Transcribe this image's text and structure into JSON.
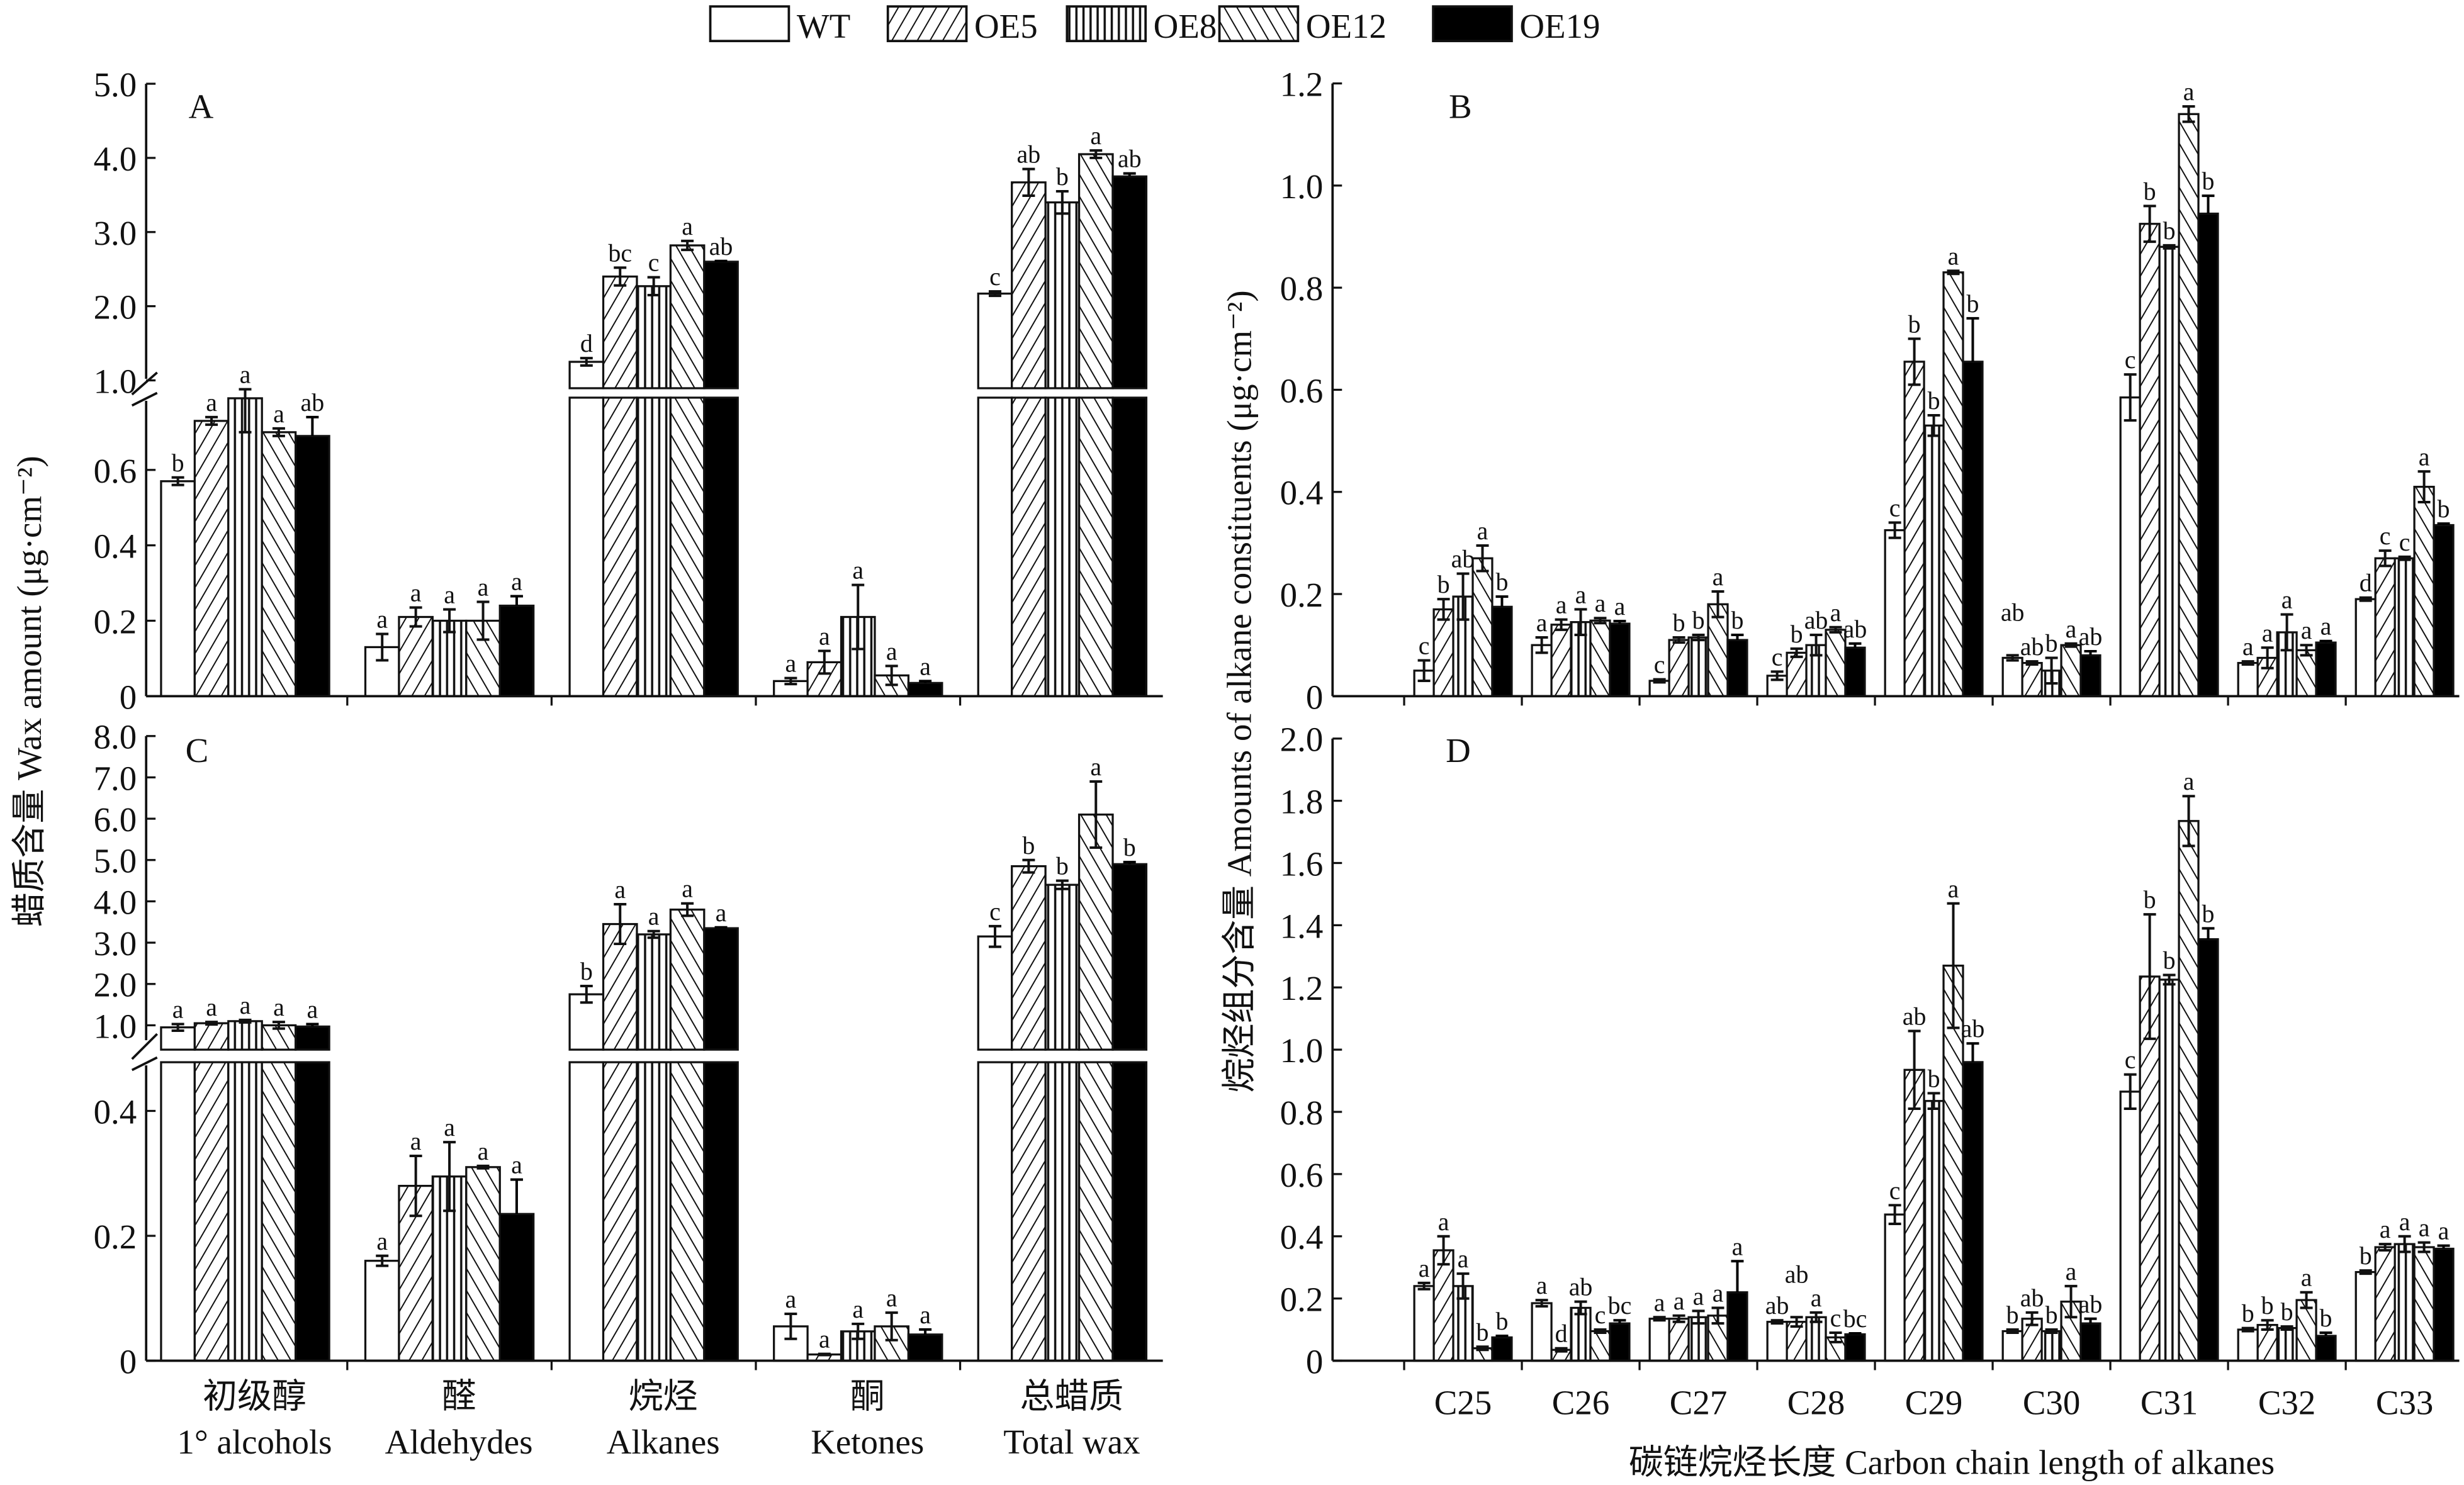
{
  "legend": [
    {
      "name": "WT",
      "pattern": "white"
    },
    {
      "name": "OE5",
      "pattern": "forward-diagonal"
    },
    {
      "name": "OE8",
      "pattern": "vertical"
    },
    {
      "name": "OE12",
      "pattern": "back-diagonal"
    },
    {
      "name": "OE19",
      "pattern": "black"
    }
  ],
  "colors": {
    "ink": "#111111",
    "background": "#ffffff",
    "solid": "#000000"
  },
  "ylabel_left": "蜡质含量 Wax amount (μg·cm⁻²)",
  "ylabel_right": "烷烃组分含量 Amounts of alkane constituents (μg·cm⁻²)",
  "chart_data": [
    {
      "panel": "A",
      "type": "bar",
      "broken_axis": true,
      "categories": [
        "1° alcohols",
        "Aldehydes",
        "Alkanes",
        "Ketones",
        "Total wax"
      ],
      "yticks": [
        "0",
        "0.2",
        "0.4",
        "0.6",
        "1.0",
        "2.0",
        "3.0",
        "4.0",
        "5.0"
      ],
      "ytick_values": [
        0,
        0.2,
        0.4,
        0.6,
        1,
        2,
        3,
        4,
        5
      ],
      "series": [
        {
          "name": "WT",
          "values": [
            0.57,
            0.13,
            1.25,
            0.04,
            2.17
          ],
          "errors": [
            0.01,
            0.035,
            0.05,
            0.008,
            0.03
          ]
        },
        {
          "name": "OE5",
          "values": [
            0.73,
            0.21,
            2.4,
            0.09,
            3.67
          ],
          "errors": [
            0.01,
            0.025,
            0.12,
            0.03,
            0.18
          ]
        },
        {
          "name": "OE8",
          "values": [
            0.79,
            0.2,
            2.27,
            0.21,
            3.4
          ],
          "errors": [
            0.09,
            0.03,
            0.12,
            0.085,
            0.15
          ]
        },
        {
          "name": "OE12",
          "values": [
            0.7,
            0.2,
            2.82,
            0.055,
            4.05
          ],
          "errors": [
            0.01,
            0.05,
            0.06,
            0.025,
            0.05
          ]
        },
        {
          "name": "OE19",
          "values": [
            0.69,
            0.24,
            2.6,
            0.035,
            3.75
          ],
          "errors": [
            0.05,
            0.025,
            0.01,
            0.005,
            0.04
          ]
        }
      ],
      "letters": [
        [
          "b",
          "a",
          "d",
          "a",
          "c"
        ],
        [
          "a",
          "a",
          "bc",
          "a",
          "ab"
        ],
        [
          "a",
          "a",
          "c",
          "a",
          "b"
        ],
        [
          "a",
          "a",
          "a",
          "a",
          "a"
        ],
        [
          "ab",
          "a",
          "ab",
          "a",
          "ab"
        ]
      ]
    },
    {
      "panel": "B",
      "type": "bar",
      "broken_axis": false,
      "categories": [
        "C25",
        "C26",
        "C27",
        "C28",
        "C29",
        "C30",
        "C31",
        "C32",
        "C33"
      ],
      "yticks": [
        "0",
        "0.2",
        "0.4",
        "0.6",
        "0.8",
        "1.0",
        "1.2"
      ],
      "ytick_values": [
        0,
        0.2,
        0.4,
        0.6,
        0.8,
        1.0,
        1.2
      ],
      "series": [
        {
          "name": "WT",
          "values": [
            0.05,
            0.1,
            0.03,
            0.04,
            0.325,
            0.075,
            0.585,
            0.065,
            0.19
          ],
          "errors": [
            0.02,
            0.015,
            0.003,
            0.008,
            0.015,
            0.005,
            0.045,
            0.003,
            0.003
          ]
        },
        {
          "name": "OE5",
          "values": [
            0.17,
            0.14,
            0.11,
            0.085,
            0.655,
            0.065,
            0.925,
            0.075,
            0.27
          ],
          "errors": [
            0.02,
            0.01,
            0.005,
            0.008,
            0.045,
            0.003,
            0.035,
            0.02,
            0.015
          ]
        },
        {
          "name": "OE8",
          "values": [
            0.195,
            0.145,
            0.115,
            0.1,
            0.53,
            0.05,
            0.88,
            0.125,
            0.27
          ],
          "errors": [
            0.045,
            0.025,
            0.005,
            0.02,
            0.02,
            0.025,
            0.003,
            0.035,
            0.003
          ]
        },
        {
          "name": "OE12",
          "values": [
            0.27,
            0.148,
            0.18,
            0.13,
            0.83,
            0.1,
            1.14,
            0.09,
            0.41
          ],
          "errors": [
            0.025,
            0.005,
            0.025,
            0.005,
            0.003,
            0.003,
            0.015,
            0.01,
            0.03
          ]
        },
        {
          "name": "OE19",
          "values": [
            0.175,
            0.142,
            0.11,
            0.095,
            0.655,
            0.08,
            0.945,
            0.105,
            0.335
          ],
          "errors": [
            0.02,
            0.005,
            0.01,
            0.008,
            0.085,
            0.008,
            0.035,
            0.003,
            0.003
          ]
        }
      ],
      "letters": [
        [
          "c",
          "a",
          "c",
          "c",
          "c",
          "ab",
          "c",
          "a",
          "d"
        ],
        [
          "b",
          "a",
          "b",
          "b",
          "b",
          "ab",
          "b",
          "a",
          "c"
        ],
        [
          "ab",
          "a",
          "b",
          "ab",
          "b",
          "b",
          "b",
          "a",
          "c"
        ],
        [
          "a",
          "a",
          "a",
          "a",
          "a",
          "a",
          "a",
          "a",
          "a"
        ],
        [
          "b",
          "a",
          "b",
          "ab",
          "b",
          "ab",
          "b",
          "a",
          "b"
        ]
      ]
    },
    {
      "panel": "C",
      "type": "bar",
      "broken_axis": true,
      "categories": [
        "1° alcohols",
        "Aldehydes",
        "Alkanes",
        "Ketones",
        "Total wax"
      ],
      "categories_zh": [
        "初级醇",
        "醛",
        "烷烃",
        "酮",
        "总蜡质"
      ],
      "yticks": [
        "0",
        "0.2",
        "0.4",
        "1.0",
        "2.0",
        "3.0",
        "4.0",
        "5.0",
        "6.0",
        "7.0",
        "8.0"
      ],
      "ytick_values": [
        0,
        0.2,
        0.4,
        1,
        2,
        3,
        4,
        5,
        6,
        7,
        8
      ],
      "series": [
        {
          "name": "WT",
          "values": [
            0.95,
            0.16,
            1.75,
            0.055,
            3.15
          ],
          "errors": [
            0.08,
            0.008,
            0.2,
            0.02,
            0.25
          ]
        },
        {
          "name": "OE5",
          "values": [
            1.05,
            0.28,
            3.45,
            0.01,
            4.85
          ],
          "errors": [
            0.03,
            0.048,
            0.48,
            0.001,
            0.15
          ]
        },
        {
          "name": "OE8",
          "values": [
            1.1,
            0.295,
            3.2,
            0.047,
            4.4
          ],
          "errors": [
            0.03,
            0.055,
            0.08,
            0.012,
            0.1
          ]
        },
        {
          "name": "OE12",
          "values": [
            1.0,
            0.31,
            3.8,
            0.055,
            6.1
          ],
          "errors": [
            0.08,
            0.002,
            0.15,
            0.022,
            0.8
          ]
        },
        {
          "name": "OE19",
          "values": [
            0.97,
            0.235,
            3.35,
            0.042,
            4.9
          ],
          "errors": [
            0.06,
            0.055,
            0.02,
            0.008,
            0.05
          ]
        }
      ],
      "letters": [
        [
          "a",
          "a",
          "b",
          "a",
          "c"
        ],
        [
          "a",
          "a",
          "a",
          "a",
          "b"
        ],
        [
          "a",
          "a",
          "a",
          "a",
          "b"
        ],
        [
          "a",
          "a",
          "a",
          "a",
          "a"
        ],
        [
          "a",
          "a",
          "a",
          "a",
          "b"
        ]
      ]
    },
    {
      "panel": "D",
      "type": "bar",
      "broken_axis": false,
      "categories": [
        "C25",
        "C26",
        "C27",
        "C28",
        "C29",
        "C30",
        "C31",
        "C32",
        "C33"
      ],
      "xlabel": "碳链烷烃长度 Carbon chain length of alkanes",
      "yticks": [
        "0",
        "0.2",
        "0.4",
        "0.6",
        "0.8",
        "1.0",
        "1.2",
        "1.4",
        "1.6",
        "1.8",
        "2.0"
      ],
      "ytick_values": [
        0,
        0.2,
        0.4,
        0.6,
        0.8,
        1.0,
        1.2,
        1.4,
        1.6,
        1.8,
        2.0
      ],
      "series": [
        {
          "name": "WT",
          "values": [
            0.24,
            0.185,
            0.135,
            0.125,
            0.47,
            0.095,
            0.865,
            0.1,
            0.285
          ],
          "errors": [
            0.01,
            0.01,
            0.005,
            0.005,
            0.03,
            0.005,
            0.055,
            0.005,
            0.005
          ]
        },
        {
          "name": "OE5",
          "values": [
            0.355,
            0.035,
            0.135,
            0.125,
            0.935,
            0.135,
            1.235,
            0.115,
            0.365
          ],
          "errors": [
            0.045,
            0.005,
            0.01,
            0.015,
            0.125,
            0.02,
            0.2,
            0.015,
            0.01
          ]
        },
        {
          "name": "OE8",
          "values": [
            0.24,
            0.17,
            0.14,
            0.14,
            0.835,
            0.095,
            1.225,
            0.105,
            0.375
          ],
          "errors": [
            0.04,
            0.02,
            0.02,
            0.015,
            0.025,
            0.005,
            0.015,
            0.005,
            0.025
          ]
        },
        {
          "name": "OE12",
          "values": [
            0.04,
            0.095,
            0.145,
            0.075,
            1.27,
            0.19,
            1.735,
            0.195,
            0.365
          ],
          "errors": [
            0.005,
            0.005,
            0.025,
            0.015,
            0.2,
            0.05,
            0.08,
            0.025,
            0.015
          ]
        },
        {
          "name": "OE19",
          "values": [
            0.075,
            0.12,
            0.22,
            0.085,
            0.96,
            0.12,
            1.355,
            0.08,
            0.36
          ],
          "errors": [
            0.005,
            0.01,
            0.1,
            0.003,
            0.06,
            0.015,
            0.035,
            0.01,
            0.01
          ]
        }
      ],
      "letters": [
        [
          "a",
          "a",
          "a",
          "ab",
          "c",
          "b",
          "c",
          "b",
          "b"
        ],
        [
          "a",
          "d",
          "a",
          "ab",
          "ab",
          "ab",
          "b",
          "b",
          "a"
        ],
        [
          "a",
          "ab",
          "a",
          "a",
          "b",
          "b",
          "b",
          "b",
          "a"
        ],
        [
          "b",
          "c",
          "a",
          "c",
          "a",
          "a",
          "a",
          "a",
          "a"
        ],
        [
          "b",
          "bc",
          "a",
          "bc",
          "ab",
          "ab",
          "b",
          "b",
          "a"
        ]
      ]
    }
  ]
}
